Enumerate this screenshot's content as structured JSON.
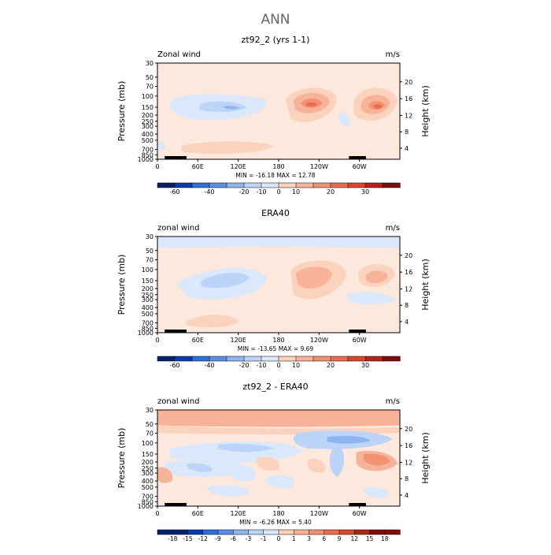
{
  "page_title": "ANN",
  "colors": {
    "neg_blue": [
      "#08216b",
      "#0c3bb0",
      "#2f6fd8",
      "#5a8fe6",
      "#8fb5f0",
      "#bcd4f7",
      "#dbe8fb"
    ],
    "neutral": "#fce8dc",
    "pos_red": [
      "#fbd2bc",
      "#f7b39a",
      "#f39273",
      "#ea6c4f",
      "#d9472f",
      "#b52418",
      "#7e0f0d"
    ]
  },
  "chart_data": [
    {
      "type": "contour",
      "title": "zt92_2 (yrs 1-1)",
      "field_label": "Zonal wind",
      "units_label": "m/s",
      "ylabel": "Pressure (mb)",
      "ylabel_right": "Height (km)",
      "y_ticks": [
        "30",
        "50",
        "70",
        "100",
        "150",
        "200",
        "250",
        "300",
        "400",
        "500",
        "700",
        "850",
        "1000"
      ],
      "height_ticks": [
        "4",
        "8",
        "12",
        "16",
        "20"
      ],
      "x_ticks": [
        "0",
        "60E",
        "120E",
        "180",
        "120W",
        "60W"
      ],
      "min_value": -16.18,
      "max_value": 12.78,
      "stats_text": "MIN = -16.18   MAX =  12.78",
      "colorbar_labels": [
        "-60",
        "-40",
        "-20",
        "-10",
        "0",
        "10",
        "20",
        "30"
      ]
    },
    {
      "type": "contour",
      "title": "ERA40",
      "field_label": "zonal wind",
      "units_label": "m/s",
      "ylabel": "Pressure (mb)",
      "ylabel_right": "Height (km)",
      "y_ticks": [
        "30",
        "50",
        "70",
        "100",
        "150",
        "200",
        "250",
        "300",
        "400",
        "500",
        "700",
        "850",
        "1000"
      ],
      "height_ticks": [
        "4",
        "8",
        "12",
        "16",
        "20"
      ],
      "x_ticks": [
        "0",
        "60E",
        "120E",
        "180",
        "120W",
        "60W"
      ],
      "min_value": -13.65,
      "max_value": 9.69,
      "stats_text": "MIN = -13.65   MAX =   9.69",
      "colorbar_labels": [
        "-60",
        "-40",
        "-20",
        "-10",
        "0",
        "10",
        "20",
        "30"
      ]
    },
    {
      "type": "contour",
      "title": "zt92_2 - ERA40",
      "field_label": "zonal wind",
      "units_label": "m/s",
      "ylabel": "Pressure (mb)",
      "ylabel_right": "Height (km)",
      "y_ticks": [
        "30",
        "50",
        "70",
        "100",
        "150",
        "200",
        "250",
        "300",
        "400",
        "500",
        "700",
        "850",
        "1000"
      ],
      "height_ticks": [
        "4",
        "8",
        "12",
        "16",
        "20"
      ],
      "x_ticks": [
        "0",
        "60E",
        "120E",
        "180",
        "120W",
        "60W"
      ],
      "min_value": -6.26,
      "max_value": 5.4,
      "stats_text": "MIN =  -6.26   MAX =   5.40",
      "colorbar_labels": [
        "-18",
        "-15",
        "-12",
        "-9",
        "-6",
        "-3",
        "-1",
        "0",
        "1",
        "3",
        "6",
        "9",
        "12",
        "15",
        "18"
      ]
    }
  ]
}
